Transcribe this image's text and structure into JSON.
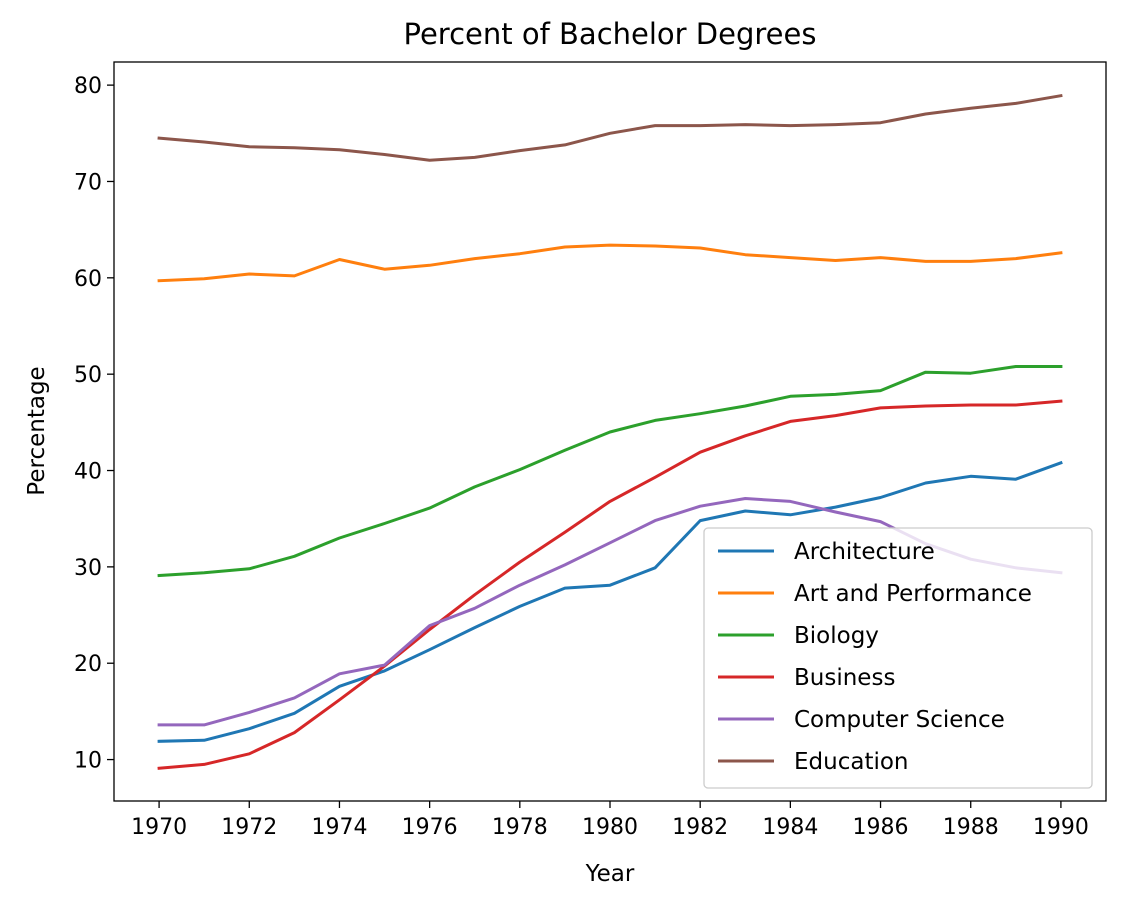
{
  "chart_data": {
    "type": "line",
    "title": "Percent of Bachelor Degrees",
    "xlabel": "Year",
    "ylabel": "Percentage",
    "xlim": [
      1969,
      1991
    ],
    "ylim": [
      5.7,
      82.4
    ],
    "xticks": [
      "1970",
      "1972",
      "1974",
      "1976",
      "1978",
      "1980",
      "1982",
      "1984",
      "1986",
      "1988",
      "1990"
    ],
    "yticks": [
      "10",
      "20",
      "30",
      "40",
      "50",
      "60",
      "70",
      "80"
    ],
    "grid": false,
    "legend": "lower-right",
    "x": [
      1970,
      1971,
      1972,
      1973,
      1974,
      1975,
      1976,
      1977,
      1978,
      1979,
      1980,
      1981,
      1982,
      1983,
      1984,
      1985,
      1986,
      1987,
      1988,
      1989,
      1990
    ],
    "series": [
      {
        "name": "Architecture",
        "color": "#1f77b4",
        "values": [
          11.9,
          12.0,
          13.2,
          14.8,
          17.6,
          19.2,
          21.4,
          23.7,
          25.9,
          27.8,
          28.1,
          29.9,
          34.8,
          35.8,
          35.4,
          36.2,
          37.2,
          38.7,
          39.4,
          39.1,
          40.8
        ]
      },
      {
        "name": "Art and Performance",
        "color": "#ff7f0e",
        "values": [
          59.7,
          59.9,
          60.4,
          60.2,
          61.9,
          60.9,
          61.3,
          62.0,
          62.5,
          63.2,
          63.4,
          63.3,
          63.1,
          62.4,
          62.1,
          61.8,
          62.1,
          61.7,
          61.7,
          62.0,
          62.6
        ]
      },
      {
        "name": "Biology",
        "color": "#2ca02c",
        "values": [
          29.1,
          29.4,
          29.8,
          31.1,
          33.0,
          34.5,
          36.1,
          38.3,
          40.1,
          42.1,
          44.0,
          45.2,
          45.9,
          46.7,
          47.7,
          47.9,
          48.3,
          50.2,
          50.1,
          50.8,
          50.8
        ]
      },
      {
        "name": "Business",
        "color": "#d62728",
        "values": [
          9.1,
          9.5,
          10.6,
          12.8,
          16.2,
          19.7,
          23.5,
          27.1,
          30.5,
          33.6,
          36.8,
          39.3,
          41.9,
          43.6,
          45.1,
          45.7,
          46.5,
          46.7,
          46.8,
          46.8,
          47.2
        ]
      },
      {
        "name": "Computer Science",
        "color": "#9467bd",
        "values": [
          13.6,
          13.6,
          14.9,
          16.4,
          18.9,
          19.8,
          23.9,
          25.7,
          28.1,
          30.2,
          32.5,
          34.8,
          36.3,
          37.1,
          36.8,
          35.7,
          34.7,
          32.4,
          30.8,
          29.9,
          29.4
        ]
      },
      {
        "name": "Education",
        "color": "#8c564b",
        "values": [
          74.5,
          74.1,
          73.6,
          73.5,
          73.3,
          72.8,
          72.2,
          72.5,
          73.2,
          73.8,
          75.0,
          75.8,
          75.8,
          75.9,
          75.8,
          75.9,
          76.1,
          77.0,
          77.6,
          78.1,
          78.9
        ]
      }
    ]
  }
}
